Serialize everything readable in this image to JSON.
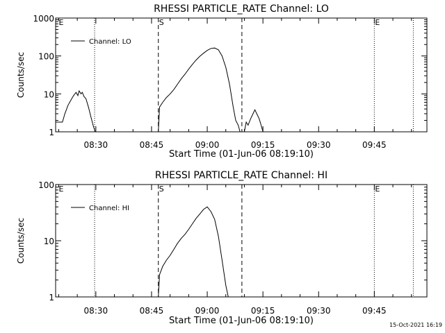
{
  "chart_data": [
    {
      "type": "line",
      "title": "RHESSI PARTICLE_RATE Channel: LO",
      "xlabel": "Start Time (01-Jun-06 08:19:10)",
      "ylabel": "Counts/sec",
      "ylog": true,
      "xlim": [
        "08:19:10",
        "09:59:10"
      ],
      "ylim": [
        1,
        1000
      ],
      "xticks": [
        "08:30",
        "08:45",
        "09:00",
        "09:15",
        "09:30",
        "09:45"
      ],
      "yticks": [
        "1",
        "10",
        "100",
        "1000"
      ],
      "legend": {
        "label": "Channel: LO",
        "position": "top-left"
      },
      "markers": [
        {
          "time": "08:29:40",
          "style": "dotted",
          "label": ""
        },
        {
          "time": "08:46:50",
          "style": "dashed",
          "label": "S"
        },
        {
          "time": "09:09:20",
          "style": "dashed",
          "label": ""
        },
        {
          "time": "09:45:00",
          "style": "dotted",
          "label": "E"
        },
        {
          "time": "09:55:30",
          "style": "dotted",
          "label": ""
        },
        {
          "time": "08:19:50",
          "style": "none",
          "label": "E"
        }
      ],
      "series": [
        {
          "name": "Channel: LO",
          "segments": [
            [
              [
                "08:19:10",
                1.8
              ],
              [
                "08:20:00",
                1.8
              ],
              [
                "08:21:00",
                1.8
              ],
              [
                "08:21:40",
                3
              ],
              [
                "08:22:30",
                5
              ],
              [
                "08:23:20",
                7
              ],
              [
                "08:24:00",
                9
              ],
              [
                "08:24:40",
                11
              ],
              [
                "08:25:10",
                9
              ],
              [
                "08:25:30",
                12
              ],
              [
                "08:26:00",
                10
              ],
              [
                "08:26:20",
                11
              ],
              [
                "08:26:50",
                8.5
              ],
              [
                "08:27:20",
                7.5
              ],
              [
                "08:28:00",
                4.5
              ],
              [
                "08:28:40",
                2.5
              ],
              [
                "08:29:20",
                1.4
              ],
              [
                "08:29:50",
                1
              ]
            ],
            [
              [
                "08:46:50",
                1
              ],
              [
                "08:47:10",
                4.5
              ],
              [
                "08:48:00",
                6
              ],
              [
                "08:49:00",
                8
              ],
              [
                "08:50:00",
                10
              ],
              [
                "08:51:00",
                13
              ],
              [
                "08:52:00",
                18
              ],
              [
                "08:53:00",
                25
              ],
              [
                "08:54:00",
                33
              ],
              [
                "08:55:00",
                45
              ],
              [
                "08:56:00",
                60
              ],
              [
                "08:57:00",
                78
              ],
              [
                "08:58:00",
                98
              ],
              [
                "08:59:00",
                118
              ],
              [
                "09:00:00",
                140
              ],
              [
                "09:01:00",
                158
              ],
              [
                "09:02:00",
                162
              ],
              [
                "09:03:00",
                145
              ],
              [
                "09:04:00",
                100
              ],
              [
                "09:05:00",
                50
              ],
              [
                "09:06:00",
                18
              ],
              [
                "09:07:00",
                4.5
              ],
              [
                "09:07:40",
                2
              ],
              [
                "09:08:20",
                1.5
              ],
              [
                "09:08:50",
                1
              ]
            ],
            [
              [
                "09:10:00",
                1
              ],
              [
                "09:10:30",
                1.8
              ],
              [
                "09:11:00",
                1.5
              ],
              [
                "09:11:40",
                2.2
              ],
              [
                "09:12:20",
                3
              ],
              [
                "09:12:50",
                3.8
              ],
              [
                "09:13:30",
                2.8
              ],
              [
                "09:14:00",
                2.2
              ],
              [
                "09:14:30",
                1.5
              ],
              [
                "09:15:00",
                1
              ]
            ]
          ]
        }
      ]
    },
    {
      "type": "line",
      "title": "RHESSI PARTICLE_RATE Channel: HI",
      "xlabel": "Start Time (01-Jun-06 08:19:10)",
      "ylabel": "Counts/sec",
      "ylog": true,
      "xlim": [
        "08:19:10",
        "09:59:10"
      ],
      "ylim": [
        1,
        100
      ],
      "xticks": [
        "08:30",
        "08:45",
        "09:00",
        "09:15",
        "09:30",
        "09:45"
      ],
      "yticks": [
        "1",
        "10",
        "100"
      ],
      "legend": {
        "label": "Channel: HI",
        "position": "top-left"
      },
      "markers": [
        {
          "time": "08:29:40",
          "style": "dotted",
          "label": ""
        },
        {
          "time": "08:46:50",
          "style": "dashed",
          "label": "S"
        },
        {
          "time": "09:09:20",
          "style": "dashed",
          "label": ""
        },
        {
          "time": "09:45:00",
          "style": "dotted",
          "label": "E"
        },
        {
          "time": "09:55:30",
          "style": "dotted",
          "label": ""
        },
        {
          "time": "08:19:50",
          "style": "none",
          "label": "E"
        }
      ],
      "series": [
        {
          "name": "Channel: HI",
          "segments": [
            [
              [
                "08:46:50",
                1
              ],
              [
                "08:47:10",
                2.5
              ],
              [
                "08:48:00",
                3.5
              ],
              [
                "08:49:00",
                4.5
              ],
              [
                "08:50:00",
                5.5
              ],
              [
                "08:51:00",
                7
              ],
              [
                "08:52:00",
                9
              ],
              [
                "08:53:00",
                11
              ],
              [
                "08:54:00",
                13
              ],
              [
                "08:55:00",
                16
              ],
              [
                "08:56:00",
                20
              ],
              [
                "08:57:00",
                25
              ],
              [
                "08:58:00",
                30
              ],
              [
                "08:59:00",
                36
              ],
              [
                "09:00:00",
                40
              ],
              [
                "09:01:00",
                33
              ],
              [
                "09:02:00",
                24
              ],
              [
                "09:03:00",
                12
              ],
              [
                "09:04:00",
                4.5
              ],
              [
                "09:05:00",
                1.6
              ],
              [
                "09:05:40",
                1
              ]
            ]
          ]
        }
      ]
    }
  ],
  "footer": {
    "timestamp": "15-Oct-2021 16:19"
  }
}
